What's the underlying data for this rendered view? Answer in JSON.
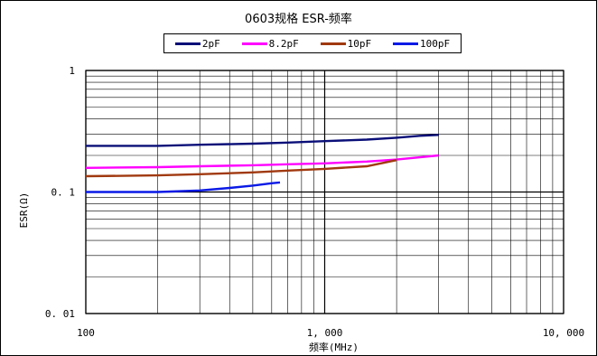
{
  "chart_data": {
    "type": "line",
    "title": "0603规格 ESR-频率",
    "xlabel": "频率(MHz)",
    "ylabel": "ESR(Ω)",
    "x_scale": "log",
    "y_scale": "log",
    "xlim": [
      100,
      10000
    ],
    "ylim": [
      0.01,
      1
    ],
    "x_tick_labels": [
      {
        "value": 100,
        "label": "100"
      },
      {
        "value": 1000,
        "label": "1, 000"
      },
      {
        "value": 10000,
        "label": "10, 000"
      }
    ],
    "y_tick_labels": [
      {
        "value": 1,
        "label": "1"
      },
      {
        "value": 0.1,
        "label": "0. 1"
      },
      {
        "value": 0.01,
        "label": "0. 01"
      }
    ],
    "grid": true,
    "legend_position": "top",
    "series": [
      {
        "name": "2pF",
        "color": "#0a0f78",
        "points": [
          [
            100,
            0.24
          ],
          [
            200,
            0.24
          ],
          [
            300,
            0.245
          ],
          [
            500,
            0.25
          ],
          [
            700,
            0.255
          ],
          [
            1000,
            0.262
          ],
          [
            1500,
            0.27
          ],
          [
            2000,
            0.28
          ],
          [
            2500,
            0.29
          ],
          [
            3000,
            0.295
          ]
        ]
      },
      {
        "name": "8.2pF",
        "color": "#ff00ff",
        "points": [
          [
            100,
            0.158
          ],
          [
            200,
            0.16
          ],
          [
            300,
            0.163
          ],
          [
            500,
            0.166
          ],
          [
            700,
            0.169
          ],
          [
            1000,
            0.172
          ],
          [
            1500,
            0.178
          ],
          [
            2000,
            0.185
          ],
          [
            2500,
            0.193
          ],
          [
            3000,
            0.2
          ]
        ]
      },
      {
        "name": "10pF",
        "color": "#a0390f",
        "points": [
          [
            100,
            0.135
          ],
          [
            200,
            0.137
          ],
          [
            300,
            0.14
          ],
          [
            500,
            0.145
          ],
          [
            700,
            0.15
          ],
          [
            1000,
            0.155
          ],
          [
            1500,
            0.163
          ],
          [
            2000,
            0.183
          ]
        ]
      },
      {
        "name": "100pF",
        "color": "#0a1ae6",
        "points": [
          [
            100,
            0.1
          ],
          [
            200,
            0.1
          ],
          [
            300,
            0.103
          ],
          [
            400,
            0.108
          ],
          [
            500,
            0.113
          ],
          [
            600,
            0.118
          ],
          [
            650,
            0.12
          ]
        ]
      }
    ]
  }
}
